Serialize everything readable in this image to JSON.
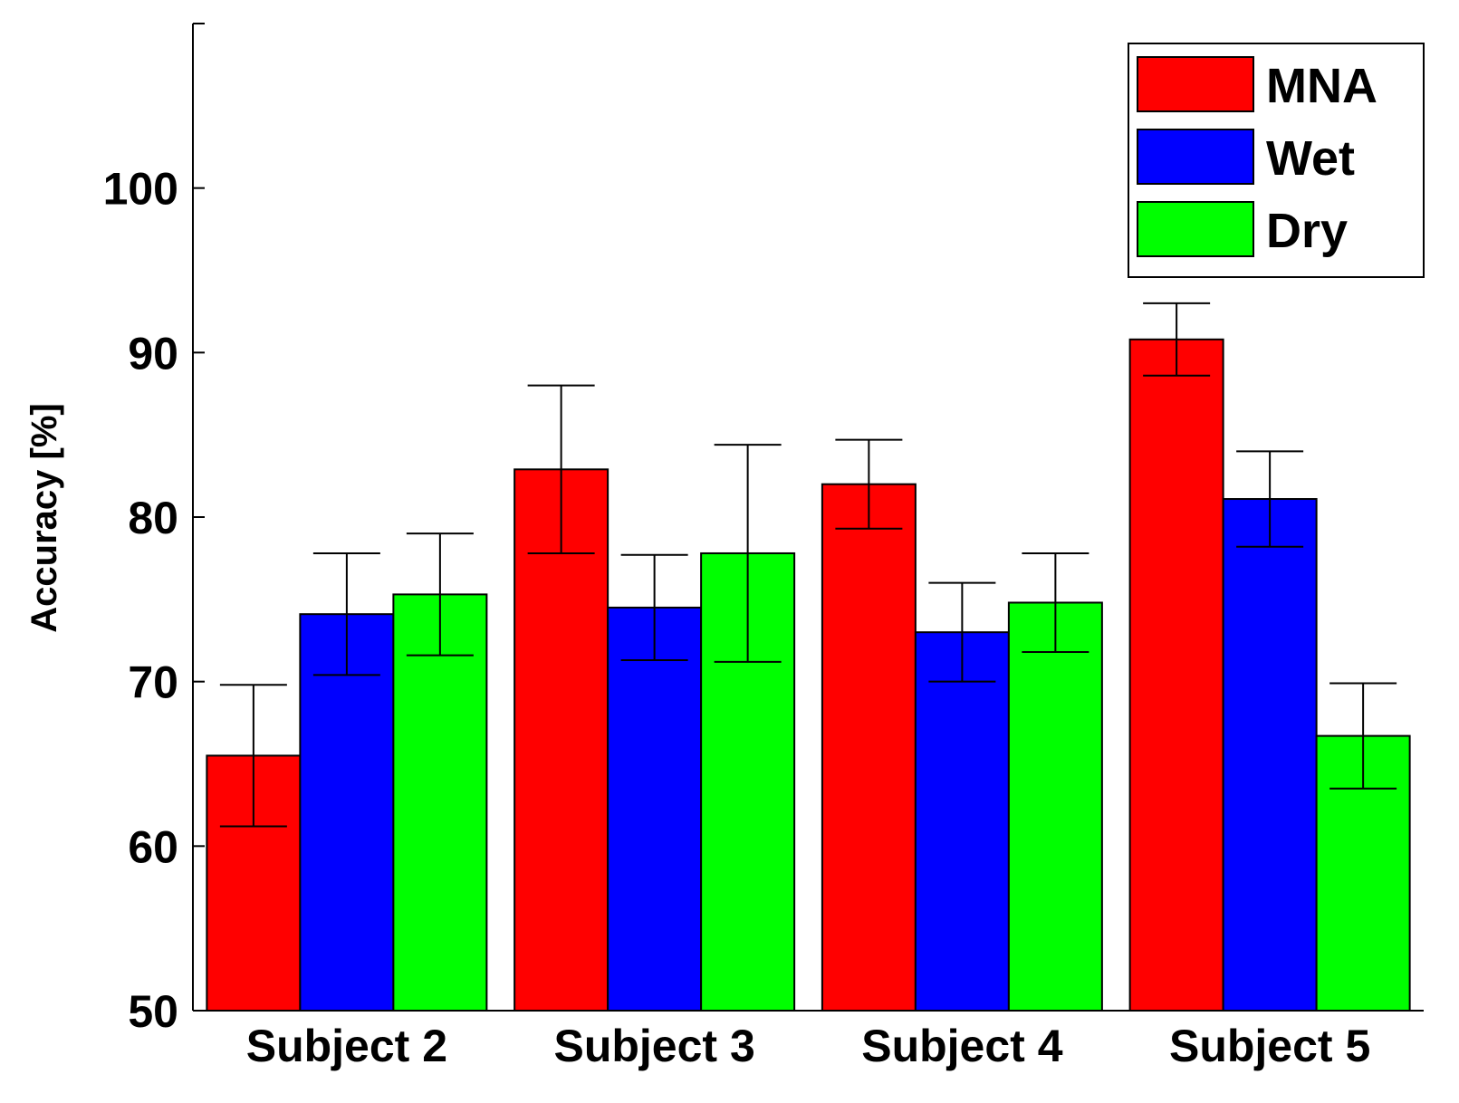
{
  "chart_data": {
    "type": "bar",
    "title": "",
    "xlabel": "",
    "ylabel": "Accuracy [%]",
    "ylim": [
      50,
      110
    ],
    "yticks": [
      50,
      60,
      70,
      80,
      90,
      100
    ],
    "grid": false,
    "legend_position": "top-right",
    "categories": [
      "Subject 2",
      "Subject 3",
      "Subject 4",
      "Subject 5"
    ],
    "series": [
      {
        "name": "MNA",
        "color": "#ff0000",
        "values": [
          65.5,
          82.9,
          82.0,
          90.8
        ],
        "error": [
          4.3,
          5.1,
          2.7,
          2.2
        ]
      },
      {
        "name": "Wet",
        "color": "#0000ff",
        "values": [
          74.1,
          74.5,
          73.0,
          81.1
        ],
        "error": [
          3.7,
          3.2,
          3.0,
          2.9
        ]
      },
      {
        "name": "Dry",
        "color": "#00ff00",
        "values": [
          75.3,
          77.8,
          74.8,
          66.7
        ],
        "error": [
          3.7,
          6.6,
          3.0,
          3.2
        ]
      }
    ]
  }
}
